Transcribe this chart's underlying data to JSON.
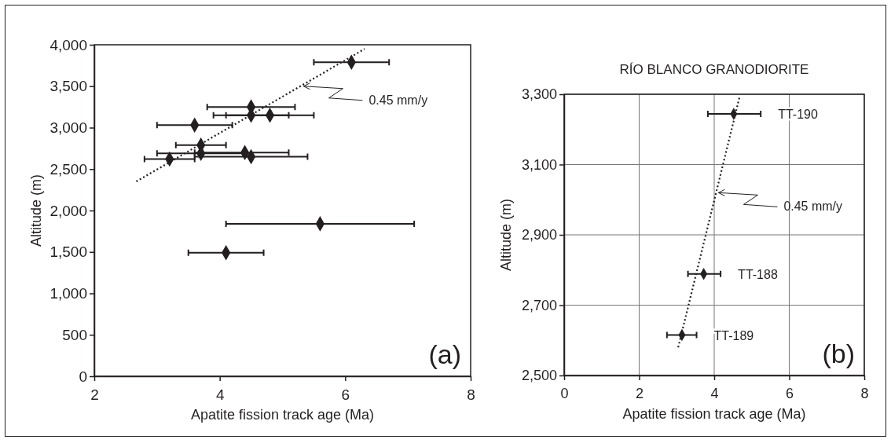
{
  "chart_data": [
    {
      "type": "scatter",
      "xlabel": "Apatite fission track age (Ma)",
      "ylabel": "Altitude (m)",
      "xlim": [
        2,
        8
      ],
      "ylim": [
        0,
        4000
      ],
      "xticks": [
        2,
        4,
        6,
        8
      ],
      "yticks": [
        {
          "value": 0,
          "label": "0"
        },
        {
          "value": 500,
          "label": "500"
        },
        {
          "value": 1000,
          "label": "1,000"
        },
        {
          "value": 1500,
          "label": "1,500"
        },
        {
          "value": 2000,
          "label": "2,000"
        },
        {
          "value": 2500,
          "label": "2,500"
        },
        {
          "value": 3000,
          "label": "3,000"
        },
        {
          "value": 3500,
          "label": "3,500"
        },
        {
          "value": 4000,
          "label": "4,000"
        }
      ],
      "grid": false,
      "marker": "diamond",
      "series": [
        {
          "type": "scatter",
          "color": "#231f20",
          "x": [
            6.1,
            4.5,
            4.5,
            4.8,
            3.6,
            3.7,
            3.7,
            4.4,
            4.5,
            3.2,
            5.6,
            4.1
          ],
          "values": [
            3790,
            3250,
            3150,
            3150,
            3030,
            2790,
            2690,
            2700,
            2650,
            2620,
            1840,
            1490
          ],
          "xerrors": [
            [
              5.5,
              6.7
            ],
            [
              3.8,
              5.2
            ],
            [
              3.9,
              5.1
            ],
            [
              4.1,
              5.5
            ],
            [
              3.0,
              4.2
            ],
            [
              3.3,
              4.1
            ],
            [
              3.0,
              4.4
            ],
            [
              3.6,
              5.1
            ],
            [
              3.6,
              5.4
            ],
            [
              2.8,
              3.6
            ],
            [
              4.1,
              7.1
            ],
            [
              3.5,
              4.7
            ]
          ]
        },
        {
          "type": "line",
          "color": "#231f20",
          "line_style": "dotted",
          "marker": "none",
          "x": [
            2.67,
            6.31
          ],
          "values": [
            2350,
            3950
          ]
        }
      ],
      "annotations": [
        {
          "text": "0.45 mm/y",
          "x": 5.3,
          "y": 3500
        },
        "(a)"
      ]
    },
    {
      "type": "scatter",
      "title": "RÍO BLANCO GRANODIORITE",
      "xlabel": "Apatite fission track age (Ma)",
      "ylabel": "Altitude (m)",
      "xlim": [
        0,
        8
      ],
      "ylim": [
        2500,
        3300
      ],
      "xticks": [
        0,
        2,
        4,
        6,
        8
      ],
      "yticks": [
        {
          "value": 2500,
          "label": "2,500"
        },
        {
          "value": 2700,
          "label": "2,700"
        },
        {
          "value": 2900,
          "label": "2,900"
        },
        {
          "value": 3100,
          "label": "3,100"
        },
        {
          "value": 3300,
          "label": "3,300"
        }
      ],
      "grid": true,
      "marker": "diamond",
      "series": [
        {
          "type": "scatter",
          "name": "TT-190",
          "color": "#231f20",
          "x": [
            4.52
          ],
          "values": [
            3244
          ],
          "xerrors": [
            [
              3.83,
              5.24
            ]
          ]
        },
        {
          "type": "scatter",
          "name": "TT-188",
          "color": "#231f20",
          "x": [
            3.72
          ],
          "values": [
            2789
          ],
          "xerrors": [
            [
              3.3,
              4.17
            ]
          ]
        },
        {
          "type": "scatter",
          "name": "TT-189",
          "color": "#231f20",
          "x": [
            3.14
          ],
          "values": [
            2615
          ],
          "xerrors": [
            [
              2.74,
              3.53
            ]
          ]
        },
        {
          "type": "line",
          "color": "#231f20",
          "line_style": "dotted",
          "marker": "none",
          "x": [
            3.04,
            4.67
          ],
          "values": [
            2580,
            3290
          ]
        }
      ],
      "annotations": [
        {
          "text": "0.45 mm/y",
          "x": 4.05,
          "y": 3020
        },
        "(b)"
      ]
    }
  ]
}
